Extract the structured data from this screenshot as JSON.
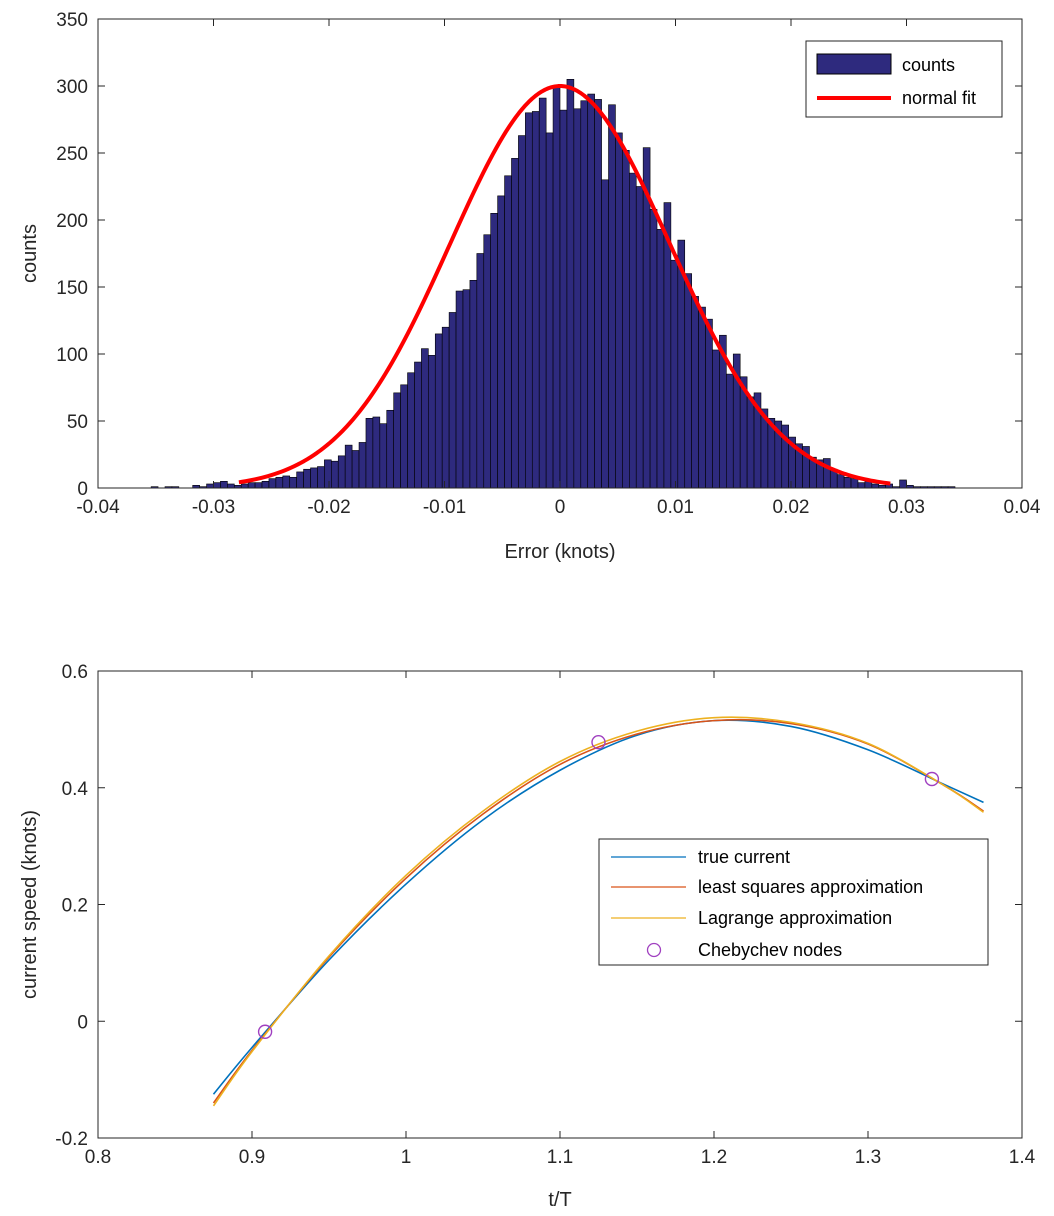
{
  "chart_data": [
    {
      "type": "bar",
      "subtype": "histogram",
      "xlabel": "Error (knots)",
      "ylabel": "counts",
      "xlim": [
        -0.04,
        0.04
      ],
      "ylim": [
        0,
        350
      ],
      "xticks": [
        "-0.04",
        "-0.03",
        "-0.02",
        "-0.01",
        "0",
        "0.01",
        "0.02",
        "0.03",
        "0.04"
      ],
      "yticks": [
        "0",
        "50",
        "100",
        "150",
        "200",
        "250",
        "300",
        "350"
      ],
      "grid": false,
      "legend_position": "top-right",
      "bin_start": -0.0354,
      "bin_width": 0.0006,
      "values": [
        1,
        0,
        1,
        1,
        0,
        0,
        2,
        1,
        3,
        4,
        5,
        3,
        2,
        3,
        4,
        4,
        5,
        7,
        8,
        9,
        8,
        12,
        14,
        15,
        16,
        21,
        20,
        24,
        32,
        28,
        34,
        52,
        53,
        48,
        58,
        71,
        77,
        86,
        94,
        104,
        99,
        115,
        120,
        131,
        147,
        148,
        155,
        175,
        189,
        205,
        218,
        233,
        246,
        263,
        280,
        281,
        291,
        265,
        300,
        282,
        305,
        283,
        289,
        294,
        290,
        230,
        286,
        265,
        252,
        235,
        225,
        254,
        208,
        193,
        213,
        170,
        185,
        160,
        143,
        135,
        126,
        103,
        114,
        85,
        100,
        83,
        68,
        71,
        59,
        52,
        50,
        47,
        38,
        33,
        31,
        23,
        21,
        22,
        14,
        10,
        8,
        7,
        4,
        5,
        3,
        2,
        3,
        1,
        6,
        2,
        1,
        1,
        1,
        1,
        1,
        1
      ],
      "series": [
        {
          "name": "counts",
          "color": "#2e2a7e"
        },
        {
          "name": "normal fit",
          "color": "#ff0000",
          "mean": 0,
          "std": 0.00953,
          "peak": 300,
          "x_range": [
            -0.0278,
            0.0286
          ]
        }
      ]
    },
    {
      "type": "line",
      "xlabel": "t/T",
      "ylabel": "current speed (knots)",
      "xlim": [
        0.8,
        1.4
      ],
      "ylim": [
        -0.2,
        0.6
      ],
      "xticks": [
        "0.8",
        "0.9",
        "1",
        "1.1",
        "1.2",
        "1.3",
        "1.4"
      ],
      "yticks": [
        "-0.2",
        "0",
        "0.2",
        "0.4",
        "0.6"
      ],
      "grid": false,
      "legend_position": "right",
      "series": [
        {
          "name": "true current",
          "color": "#0072bd",
          "x": [
            0.875,
            0.9,
            0.95,
            1.0,
            1.05,
            1.1,
            1.15,
            1.2,
            1.25,
            1.3,
            1.35,
            1.375
          ],
          "y": [
            -0.125,
            -0.045,
            0.105,
            0.235,
            0.345,
            0.43,
            0.49,
            0.515,
            0.505,
            0.465,
            0.405,
            0.375
          ]
        },
        {
          "name": "least squares approximation",
          "color": "#d95319",
          "x": [
            0.875,
            0.9,
            0.95,
            1.0,
            1.05,
            1.1,
            1.15,
            1.2,
            1.25,
            1.3,
            1.35,
            1.375
          ],
          "y": [
            -0.14,
            -0.05,
            0.11,
            0.245,
            0.355,
            0.44,
            0.492,
            0.515,
            0.51,
            0.475,
            0.403,
            0.36
          ]
        },
        {
          "name": "Lagrange approximation",
          "color": "#edb120",
          "x": [
            0.875,
            0.9,
            0.95,
            1.0,
            1.05,
            1.1,
            1.15,
            1.2,
            1.25,
            1.3,
            1.35,
            1.375
          ],
          "y": [
            -0.145,
            -0.052,
            0.112,
            0.25,
            0.36,
            0.445,
            0.497,
            0.52,
            0.512,
            0.476,
            0.403,
            0.358
          ]
        },
        {
          "name": "Chebychev nodes",
          "color": "#a040c0",
          "marker": "circle",
          "x": [
            0.9085,
            1.125,
            1.3415
          ],
          "y": [
            -0.018,
            0.478,
            0.415
          ]
        }
      ]
    }
  ]
}
